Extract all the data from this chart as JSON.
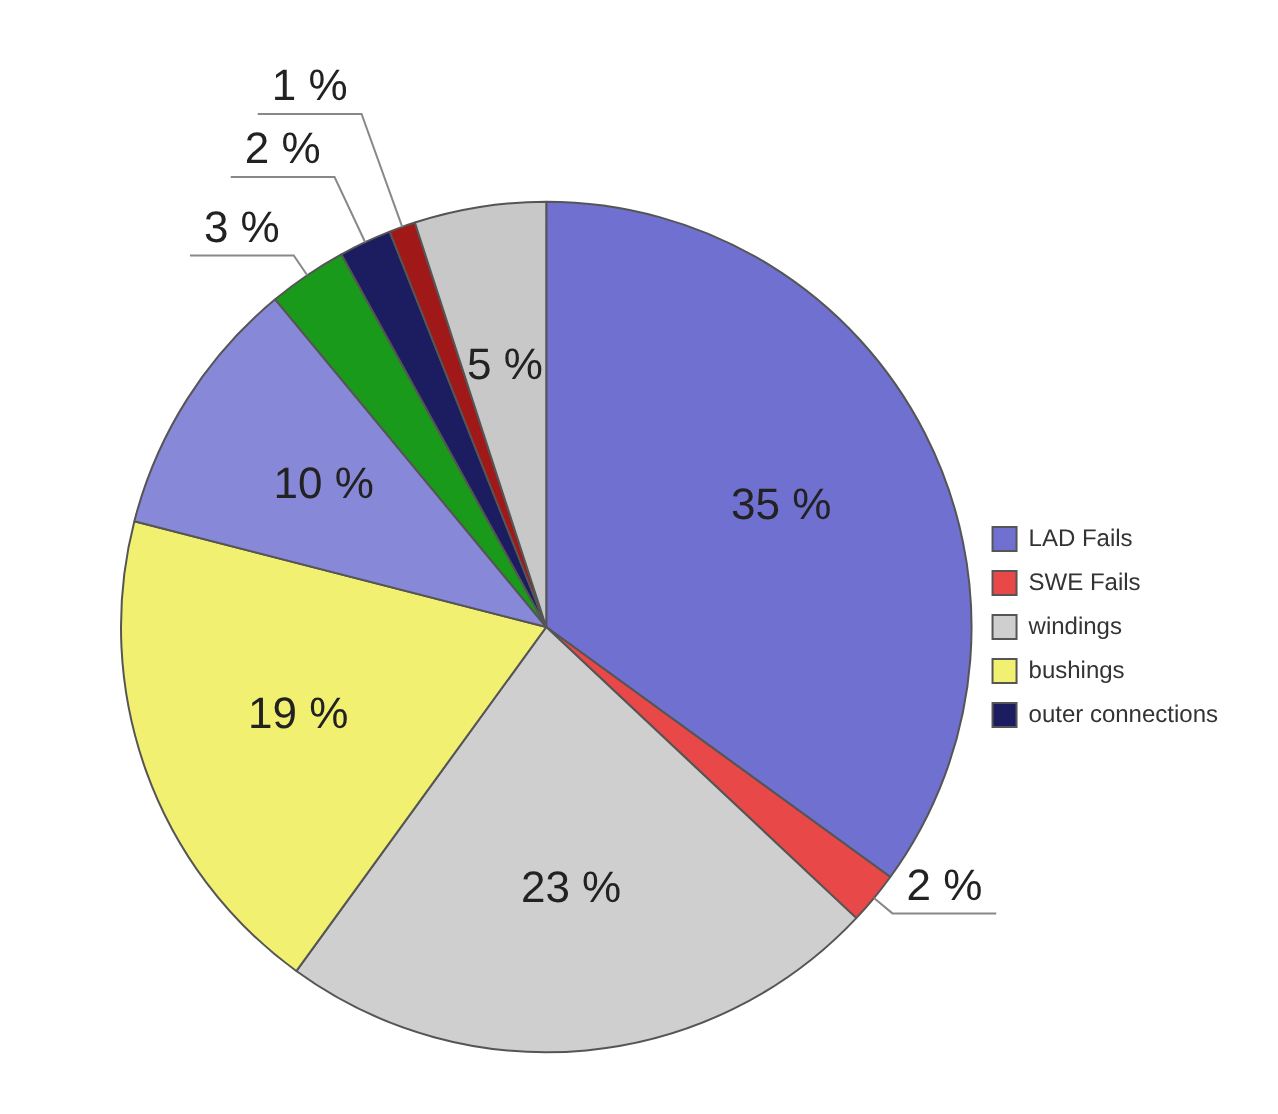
{
  "chart_data": {
    "type": "pie",
    "categories": [
      "LAD Fails",
      "SWE Fails",
      "windings",
      "bushings",
      null,
      null,
      "outer connections",
      null,
      null
    ],
    "values": [
      35,
      2,
      23,
      19,
      10,
      3,
      2,
      1,
      5
    ],
    "colors": [
      "#7070d0",
      "#e84848",
      "#cfcfcf",
      "#f2f070",
      "#8888d8",
      "#1a9a1a",
      "#1c1c60",
      "#a01818",
      "#c8c8c8"
    ],
    "value_labels": [
      "35 %",
      "2 %",
      "23 %",
      "19 %",
      "10 %",
      "3 %",
      "2 %",
      "1 %",
      "5 %"
    ],
    "legend": "right"
  }
}
